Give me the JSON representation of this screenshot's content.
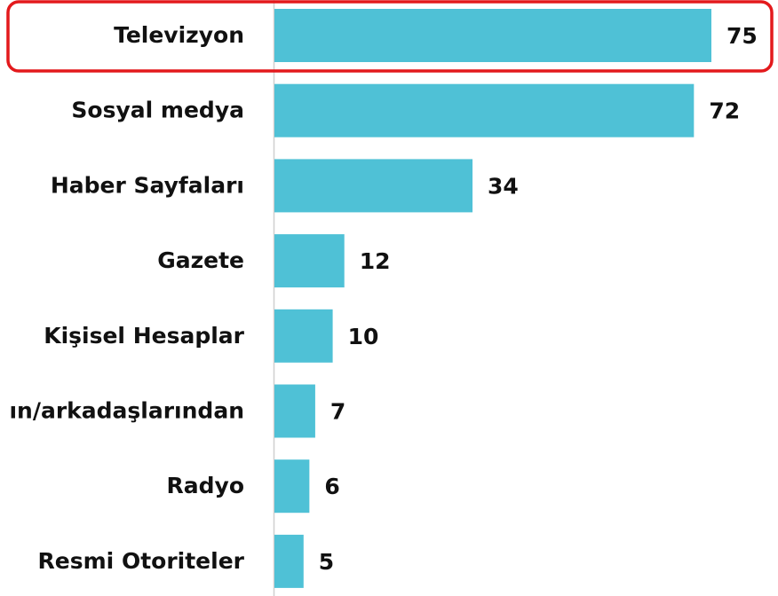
{
  "chart_data": {
    "type": "bar",
    "orientation": "horizontal",
    "categories": [
      "Televizyon",
      "Sosyal medya",
      "Haber Sayfaları",
      "Gazete",
      "Kişisel Hesaplar",
      "ın/arkadaşlarından",
      "Radyo",
      "Resmi Otoriteler"
    ],
    "values": [
      75,
      72,
      34,
      12,
      10,
      7,
      6,
      5
    ],
    "color": "#4fc1d6",
    "highlight_index": 0,
    "highlight_color": "#e3191c"
  }
}
